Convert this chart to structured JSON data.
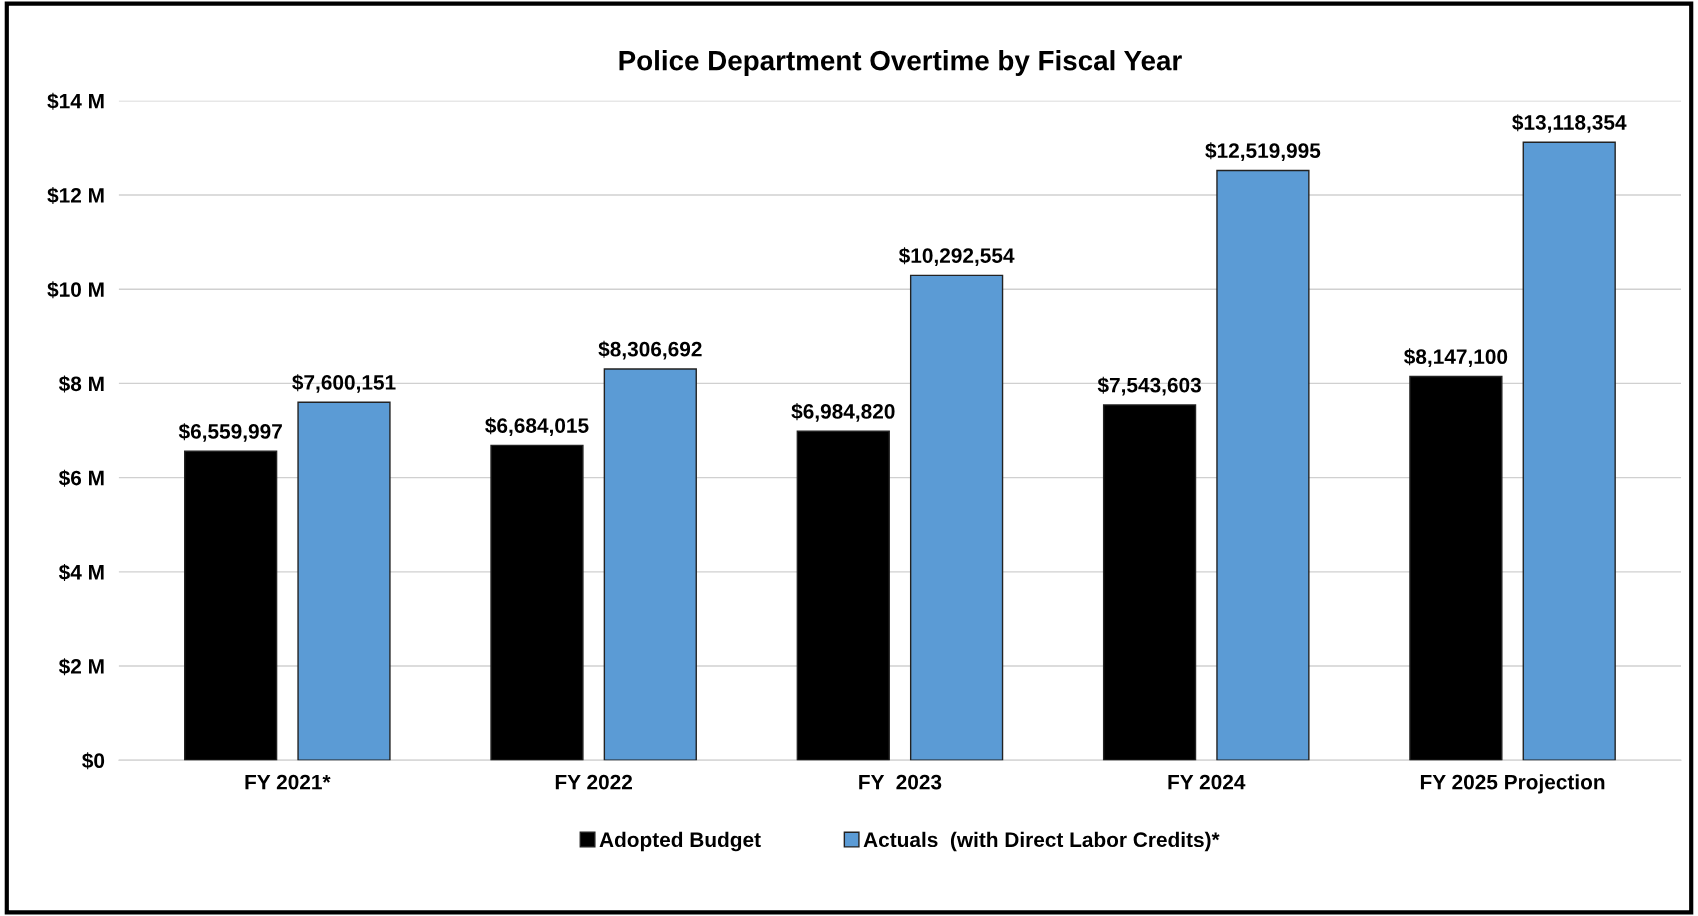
{
  "chart_data": {
    "type": "bar",
    "title": "Police Department Overtime by Fiscal Year",
    "categories": [
      "FY 2021*",
      "FY 2022",
      "FY  2023",
      "FY 2024",
      "FY 2025 Projection"
    ],
    "series": [
      {
        "name": "Adopted Budget",
        "color": "#000000",
        "values": [
          6559997,
          6684015,
          6984820,
          7543603,
          8147100
        ],
        "value_labels": [
          "$6,559,997",
          "$6,684,015",
          "$6,984,820",
          "$7,543,603",
          "$8,147,100"
        ]
      },
      {
        "name": "Actuals  (with Direct Labor Credits)*",
        "color": "#5b9bd5",
        "values": [
          7600151,
          8306692,
          10292554,
          12519995,
          13118354
        ],
        "value_labels": [
          "$7,600,151",
          "$8,306,692",
          "$10,292,554",
          "$12,519,995",
          "$13,118,354"
        ]
      }
    ],
    "ylim": [
      0,
      14000000
    ],
    "yticks": [
      {
        "value": 0,
        "label": "$0"
      },
      {
        "value": 2000000,
        "label": "$2 M"
      },
      {
        "value": 4000000,
        "label": "$4 M"
      },
      {
        "value": 6000000,
        "label": "$6 M"
      },
      {
        "value": 8000000,
        "label": "$8 M"
      },
      {
        "value": 10000000,
        "label": "$10 M"
      },
      {
        "value": 12000000,
        "label": "$12 M"
      },
      {
        "value": 14000000,
        "label": "$14 M"
      }
    ],
    "grid": "y",
    "legend": "bottom"
  }
}
